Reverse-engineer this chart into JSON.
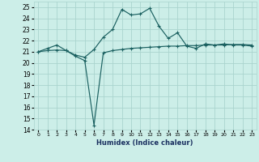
{
  "title": "",
  "xlabel": "Humidex (Indice chaleur)",
  "bg_color": "#cceee8",
  "grid_color": "#aad4ce",
  "line_color": "#1a6060",
  "ylim": [
    14,
    25.5
  ],
  "xlim": [
    -0.5,
    23.5
  ],
  "yticks": [
    14,
    15,
    16,
    17,
    18,
    19,
    20,
    21,
    22,
    23,
    24,
    25
  ],
  "xticks": [
    0,
    1,
    2,
    3,
    4,
    5,
    6,
    7,
    8,
    9,
    10,
    11,
    12,
    13,
    14,
    15,
    16,
    17,
    18,
    19,
    20,
    21,
    22,
    23
  ],
  "series1_x": [
    0,
    1,
    2,
    3,
    4,
    5,
    6,
    7,
    8,
    9,
    10,
    11,
    12,
    13,
    14,
    15,
    16,
    17,
    18,
    19,
    20,
    21,
    22,
    23
  ],
  "series1_y": [
    21.0,
    21.3,
    21.6,
    21.1,
    20.7,
    20.5,
    21.2,
    22.3,
    23.0,
    24.8,
    24.3,
    24.4,
    24.9,
    23.3,
    22.2,
    22.7,
    21.5,
    21.3,
    21.7,
    21.6,
    21.7,
    21.6,
    21.6,
    21.5
  ],
  "series2_x": [
    0,
    1,
    2,
    3,
    4,
    5,
    6,
    7,
    8,
    9,
    10,
    11,
    12,
    13,
    14,
    15,
    16,
    17,
    18,
    19,
    20,
    21,
    22,
    23
  ],
  "series2_y": [
    21.0,
    21.1,
    21.15,
    21.1,
    20.6,
    20.2,
    14.4,
    20.9,
    21.1,
    21.2,
    21.3,
    21.35,
    21.4,
    21.45,
    21.5,
    21.5,
    21.55,
    21.55,
    21.6,
    21.6,
    21.6,
    21.65,
    21.65,
    21.6
  ]
}
